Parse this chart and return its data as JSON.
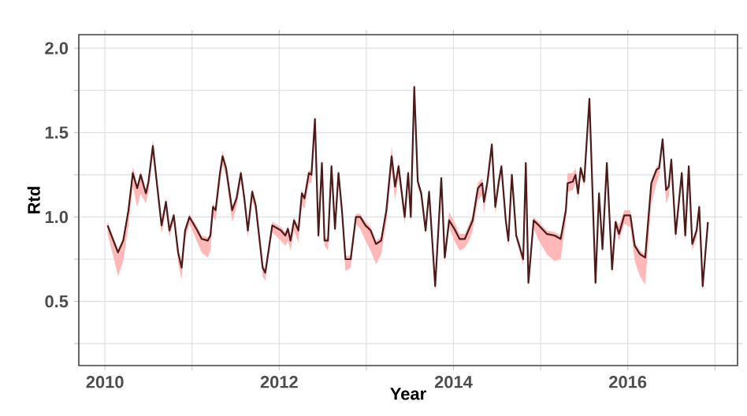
{
  "chart_data": {
    "type": "line",
    "xlabel": "Year",
    "ylabel": "Rtd",
    "grid": true,
    "line_style": "solid",
    "xlim": [
      2009.7,
      2017.26
    ],
    "ylim": [
      0.12,
      2.08
    ],
    "xticks": [
      2010,
      {
        "value": 2011,
        "label": null
      },
      2012,
      {
        "value": 2013,
        "label": null
      },
      2014,
      {
        "value": 2015,
        "label": null
      },
      2016,
      {
        "value": 2017,
        "label": null
      }
    ],
    "yticks": [
      {
        "value": 0.25,
        "label": null
      },
      {
        "value": 0.5,
        "label": "0.5"
      },
      {
        "value": 0.75,
        "label": null
      },
      {
        "value": 1.0,
        "label": "1.0"
      },
      {
        "value": 1.25,
        "label": null
      },
      {
        "value": 1.5,
        "label": "1.5"
      },
      {
        "value": 1.75,
        "label": null
      },
      {
        "value": 2.0,
        "label": "2.0"
      }
    ],
    "series": [
      {
        "color": "#4d1a1a",
        "x": [
          2010.03,
          2010.09,
          2010.15,
          2010.21,
          2010.27,
          2010.32,
          2010.37,
          2010.41,
          2010.47,
          2010.5,
          2010.55,
          2010.59,
          2010.65,
          2010.7,
          2010.74,
          2010.79,
          2010.84,
          2010.88,
          2010.92,
          2010.97,
          2011.06,
          2011.11,
          2011.18,
          2011.21,
          2011.24,
          2011.27,
          2011.32,
          2011.35,
          2011.39,
          2011.46,
          2011.51,
          2011.56,
          2011.6,
          2011.64,
          2011.69,
          2011.73,
          2011.81,
          2011.84,
          2011.92,
          2012.02,
          2012.07,
          2012.1,
          2012.13,
          2012.17,
          2012.22,
          2012.26,
          2012.29,
          2012.34,
          2012.37,
          2012.41,
          2012.45,
          2012.49,
          2012.52,
          2012.56,
          2012.6,
          2012.64,
          2012.68,
          2012.72,
          2012.76,
          2012.82,
          2012.88,
          2012.93,
          2012.99,
          2013.05,
          2013.11,
          2013.17,
          2013.23,
          2013.29,
          2013.33,
          2013.37,
          2013.44,
          2013.48,
          2013.51,
          2013.55,
          2013.59,
          2013.63,
          2013.68,
          2013.72,
          2013.79,
          2013.86,
          2013.9,
          2013.95,
          2014.01,
          2014.07,
          2014.13,
          2014.18,
          2014.22,
          2014.28,
          2014.33,
          2014.35,
          2014.39,
          2014.44,
          2014.48,
          2014.52,
          2014.55,
          2014.6,
          2014.63,
          2014.67,
          2014.72,
          2014.75,
          2014.8,
          2014.83,
          2014.86,
          2014.92,
          2014.98,
          2015.07,
          2015.16,
          2015.23,
          2015.29,
          2015.31,
          2015.37,
          2015.4,
          2015.43,
          2015.46,
          2015.5,
          2015.56,
          2015.63,
          2015.67,
          2015.71,
          2015.76,
          2015.82,
          2015.86,
          2015.9,
          2015.96,
          2016.03,
          2016.08,
          2016.14,
          2016.2,
          2016.27,
          2016.33,
          2016.36,
          2016.4,
          2016.44,
          2016.47,
          2016.5,
          2016.55,
          2016.62,
          2016.66,
          2016.7,
          2016.74,
          2016.79,
          2016.82,
          2016.86,
          2016.92
        ],
        "values": [
          0.95,
          0.87,
          0.79,
          0.86,
          1.04,
          1.26,
          1.17,
          1.25,
          1.14,
          1.21,
          1.42,
          1.23,
          0.95,
          1.09,
          0.92,
          1.01,
          0.79,
          0.7,
          0.92,
          1.0,
          0.92,
          0.87,
          0.86,
          0.89,
          1.06,
          1.04,
          1.26,
          1.36,
          1.29,
          1.04,
          1.11,
          1.26,
          1.11,
          0.92,
          1.15,
          1.07,
          0.7,
          0.67,
          0.95,
          0.92,
          0.89,
          0.93,
          0.86,
          0.98,
          0.92,
          1.14,
          1.11,
          1.26,
          1.25,
          1.58,
          0.89,
          1.32,
          0.86,
          0.86,
          1.3,
          0.93,
          1.26,
          1.04,
          0.75,
          0.75,
          1.0,
          1.0,
          0.95,
          0.92,
          0.84,
          0.86,
          1.04,
          1.36,
          1.18,
          1.3,
          1.0,
          1.26,
          1.0,
          1.77,
          1.21,
          1.14,
          0.92,
          1.15,
          0.59,
          1.23,
          0.76,
          0.98,
          0.93,
          0.87,
          0.87,
          0.93,
          0.98,
          1.17,
          1.2,
          1.09,
          1.21,
          1.43,
          1.06,
          1.21,
          1.3,
          0.98,
          0.86,
          1.25,
          0.89,
          0.84,
          0.75,
          1.32,
          0.61,
          0.98,
          0.95,
          0.9,
          0.89,
          0.87,
          1.04,
          1.2,
          1.21,
          1.25,
          1.14,
          1.29,
          1.21,
          1.7,
          0.61,
          1.14,
          0.81,
          1.32,
          0.69,
          0.97,
          0.9,
          1.01,
          1.01,
          0.83,
          0.78,
          0.76,
          1.2,
          1.28,
          1.29,
          1.46,
          1.16,
          1.18,
          1.34,
          0.9,
          1.26,
          0.89,
          1.3,
          0.84,
          0.92,
          1.06,
          0.59,
          0.97
        ],
        "lower": [
          0.9,
          0.78,
          0.65,
          0.74,
          0.95,
          1.18,
          1.06,
          1.14,
          1.08,
          1.15,
          1.37,
          1.18,
          0.9,
          1.04,
          0.88,
          0.97,
          0.73,
          0.63,
          0.87,
          0.96,
          0.85,
          0.79,
          0.76,
          0.8,
          1.0,
          0.98,
          1.2,
          1.31,
          1.24,
          0.97,
          1.06,
          1.22,
          1.07,
          0.88,
          1.1,
          1.03,
          0.65,
          0.62,
          0.91,
          0.86,
          0.83,
          0.86,
          0.8,
          0.92,
          0.85,
          1.07,
          1.05,
          1.2,
          1.2,
          1.55,
          0.86,
          1.29,
          0.83,
          0.8,
          1.27,
          0.9,
          1.23,
          1.0,
          0.68,
          0.7,
          0.96,
          0.93,
          0.86,
          0.8,
          0.72,
          0.78,
          0.97,
          1.28,
          1.1,
          1.24,
          0.96,
          1.23,
          0.97,
          1.74,
          1.18,
          1.11,
          0.89,
          1.12,
          0.56,
          1.2,
          0.73,
          0.94,
          0.86,
          0.8,
          0.82,
          0.86,
          0.92,
          1.1,
          1.13,
          1.03,
          1.16,
          1.39,
          1.02,
          1.17,
          1.26,
          0.94,
          0.82,
          1.21,
          0.86,
          0.81,
          0.71,
          1.29,
          0.58,
          0.93,
          0.86,
          0.78,
          0.74,
          0.75,
          0.98,
          1.15,
          1.16,
          1.2,
          1.1,
          1.25,
          1.18,
          1.67,
          0.58,
          1.11,
          0.78,
          1.29,
          0.66,
          0.93,
          0.86,
          0.96,
          0.94,
          0.74,
          0.65,
          0.6,
          1.08,
          1.2,
          1.24,
          1.42,
          1.08,
          1.12,
          1.3,
          0.86,
          1.22,
          0.85,
          1.26,
          0.8,
          0.88,
          1.02,
          0.56,
          0.93
        ],
        "upper": [
          0.97,
          0.89,
          0.81,
          0.88,
          1.06,
          1.3,
          1.19,
          1.27,
          1.16,
          1.23,
          1.46,
          1.25,
          0.97,
          1.11,
          0.94,
          1.03,
          0.81,
          0.72,
          0.94,
          1.02,
          0.94,
          0.89,
          0.88,
          0.91,
          1.08,
          1.06,
          1.28,
          1.39,
          1.31,
          1.06,
          1.13,
          1.28,
          1.13,
          0.94,
          1.17,
          1.09,
          0.72,
          0.69,
          0.97,
          0.94,
          0.91,
          0.95,
          0.88,
          1.0,
          0.94,
          1.16,
          1.13,
          1.28,
          1.27,
          1.6,
          0.91,
          1.34,
          0.88,
          0.88,
          1.32,
          0.95,
          1.28,
          1.06,
          0.77,
          0.77,
          1.02,
          1.02,
          0.97,
          0.94,
          0.86,
          0.88,
          1.07,
          1.42,
          1.22,
          1.33,
          1.02,
          1.28,
          1.02,
          1.8,
          1.23,
          1.16,
          0.94,
          1.17,
          0.61,
          1.25,
          0.78,
          1.03,
          0.97,
          0.9,
          0.9,
          0.96,
          1.01,
          1.2,
          1.23,
          1.12,
          1.24,
          1.45,
          1.08,
          1.23,
          1.32,
          1.0,
          0.88,
          1.27,
          0.91,
          0.86,
          0.77,
          1.34,
          0.63,
          1.0,
          0.97,
          0.92,
          0.91,
          0.89,
          1.08,
          1.26,
          1.26,
          1.29,
          1.18,
          1.31,
          1.23,
          1.72,
          0.63,
          1.16,
          0.83,
          1.34,
          0.71,
          0.99,
          0.95,
          1.04,
          1.04,
          0.85,
          0.8,
          0.78,
          1.22,
          1.3,
          1.31,
          1.48,
          1.18,
          1.2,
          1.36,
          0.92,
          1.28,
          0.91,
          1.32,
          0.86,
          0.94,
          1.08,
          0.61,
          0.99
        ]
      }
    ]
  }
}
